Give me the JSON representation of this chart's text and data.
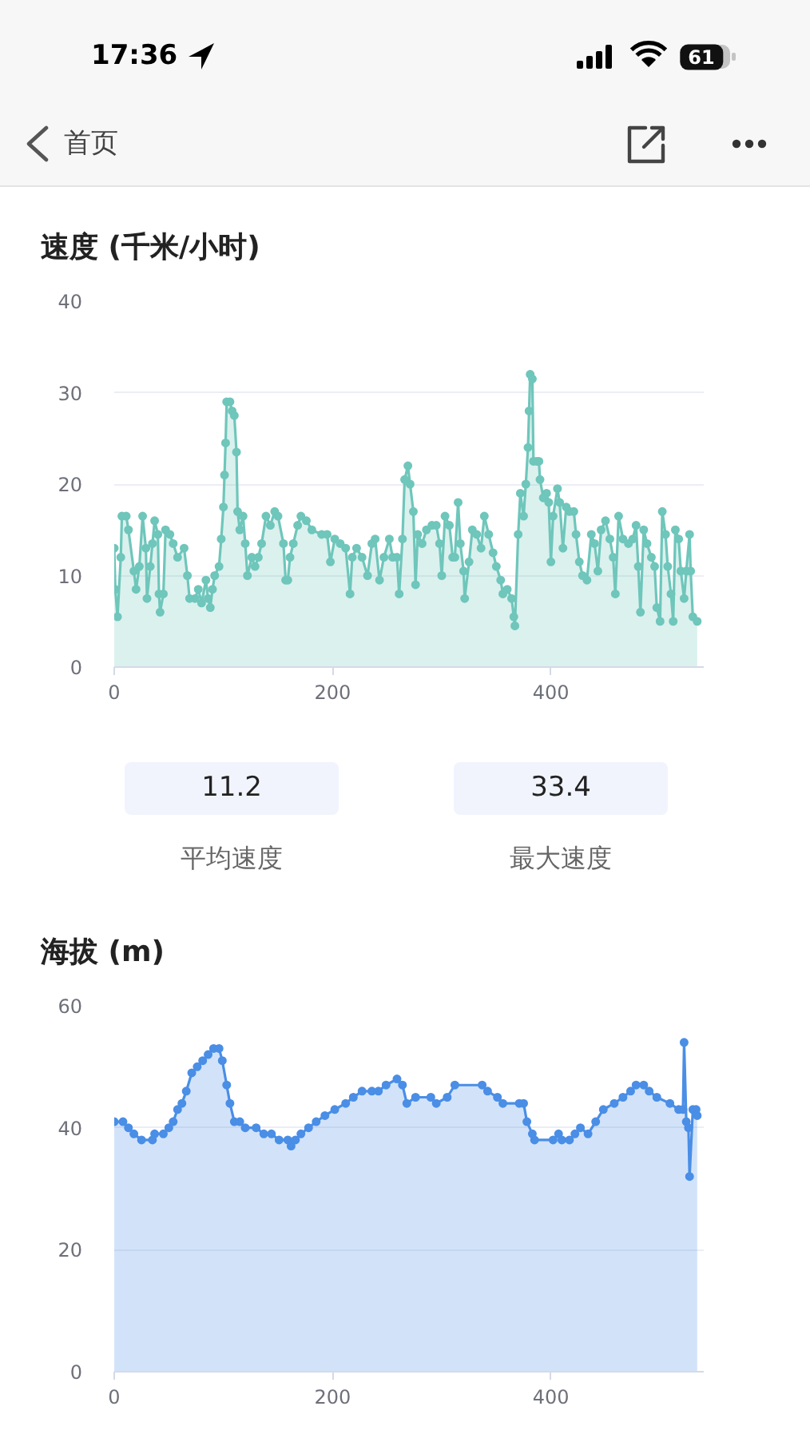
{
  "chart_data": [
    {
      "type": "other",
      "annotations": [
        "17:36",
        "61",
        "首页"
      ]
    },
    {
      "type": "area",
      "title": "速度 (千米/小时)",
      "color": "#6fc6bb",
      "marker": "circle",
      "grid": "y",
      "xlim": [
        0,
        540
      ],
      "xticks": [
        0,
        200,
        400
      ],
      "ylim": [
        0,
        40
      ],
      "yticks": [
        0,
        10,
        20,
        30,
        40
      ],
      "x": [
        0,
        1,
        3,
        6,
        7,
        11,
        13,
        18,
        20,
        23,
        26,
        29,
        30,
        33,
        35,
        37,
        40,
        41,
        42,
        45,
        47,
        51,
        54,
        58,
        64,
        67,
        69,
        74,
        77,
        80,
        84,
        86,
        88,
        90,
        92,
        96,
        98,
        100,
        101,
        102,
        103,
        106,
        108,
        110,
        112,
        113,
        115,
        118,
        120,
        122,
        126,
        129,
        132,
        135,
        139,
        143,
        147,
        150,
        155,
        157,
        159,
        161,
        164,
        168,
        171,
        176,
        181,
        190,
        195,
        198,
        202,
        207,
        212,
        216,
        218,
        222,
        227,
        232,
        236,
        239,
        243,
        247,
        252,
        255,
        259,
        261,
        264,
        266,
        269,
        271,
        274,
        276,
        278,
        282,
        286,
        291,
        295,
        298,
        300,
        303,
        307,
        310,
        312,
        315,
        317,
        320,
        321,
        325,
        328,
        332,
        336,
        339,
        343,
        347,
        350,
        354,
        356,
        360,
        364,
        366,
        367,
        370,
        372,
        375,
        377,
        379,
        380,
        381,
        383,
        384,
        387,
        389,
        390,
        393,
        396,
        398,
        400,
        402,
        406,
        408,
        411,
        414,
        417,
        421,
        423,
        426,
        429,
        433,
        437,
        440,
        443,
        446,
        450,
        454,
        457,
        459,
        462,
        466,
        471,
        475,
        478,
        480,
        482,
        485,
        488,
        492,
        495,
        497,
        500,
        502,
        505,
        507,
        510,
        512,
        514,
        517,
        519,
        522,
        524,
        527,
        528,
        530,
        534
      ],
      "values": [
        13,
        8.5,
        5.5,
        12,
        16.5,
        16.5,
        15,
        10.5,
        8.5,
        11,
        16.5,
        13,
        7.5,
        11,
        13.5,
        16,
        14.5,
        8,
        6,
        8,
        15,
        14.5,
        13.5,
        12,
        13,
        10,
        7.5,
        7.5,
        8.5,
        7,
        9.5,
        7.5,
        6.5,
        8.5,
        10,
        11,
        14,
        17.5,
        21,
        24.5,
        29,
        29,
        28,
        27.5,
        23.5,
        17,
        15,
        16.5,
        13.5,
        10,
        12,
        11,
        12,
        13.5,
        16.5,
        15.5,
        17,
        16.5,
        13.5,
        9.5,
        9.5,
        12,
        13.5,
        15.5,
        16.5,
        16,
        15,
        14.5,
        14.5,
        11.5,
        14,
        13.5,
        13,
        8,
        12,
        13,
        12,
        10,
        13.5,
        14,
        9.5,
        12,
        14,
        12,
        12,
        8,
        14,
        20.5,
        22,
        20,
        17,
        9,
        14.5,
        13.5,
        15,
        15.5,
        15.5,
        13.5,
        10,
        16.5,
        15.5,
        12,
        12,
        18,
        13.5,
        10.5,
        7.5,
        11.5,
        15,
        14.5,
        13,
        16.5,
        14.5,
        12.5,
        11,
        9.5,
        8,
        8.5,
        7.5,
        5.5,
        4.5,
        14.5,
        19,
        16.5,
        20,
        24,
        28,
        32,
        31.5,
        22.5,
        22.5,
        22.5,
        20.5,
        18.5,
        19,
        18,
        11.5,
        16.5,
        19.5,
        18,
        13,
        17.5,
        17,
        17,
        14.5,
        11.5,
        10,
        9.5,
        14.5,
        13.5,
        10.5,
        15,
        16,
        14,
        12,
        8,
        16.5,
        14,
        13.5,
        14,
        15.5,
        11,
        6,
        15,
        13.5,
        12,
        11,
        6.5,
        5,
        17,
        14.5,
        11,
        8,
        5,
        15,
        14,
        10.5,
        7.5,
        10.5,
        14.5,
        10.5,
        5.5,
        5
      ]
    },
    {
      "type": "other",
      "annotations": [
        "11.2",
        "平均速度",
        "33.4",
        "最大速度"
      ]
    },
    {
      "type": "area",
      "title": "海拔 (m)",
      "color": "#4a8ee6",
      "marker": "circle",
      "grid": "y",
      "xlim": [
        0,
        540
      ],
      "xticks": [
        0,
        200,
        400
      ],
      "ylim": [
        0,
        60
      ],
      "yticks": [
        0,
        20,
        40,
        60
      ],
      "x": [
        0,
        8,
        13,
        18,
        25,
        35,
        37,
        45,
        50,
        54,
        58,
        62,
        66,
        71,
        76,
        81,
        86,
        91,
        96,
        99,
        103,
        106,
        110,
        115,
        120,
        130,
        137,
        144,
        151,
        159,
        162,
        166,
        171,
        178,
        185,
        193,
        202,
        212,
        219,
        227,
        236,
        242,
        249,
        259,
        264,
        268,
        276,
        290,
        295,
        305,
        312,
        337,
        342,
        351,
        356,
        371,
        375,
        378,
        383,
        385,
        402,
        407,
        410,
        417,
        422,
        427,
        434,
        441,
        448,
        458,
        466,
        473,
        478,
        485,
        490,
        497,
        509,
        517,
        521,
        522,
        524,
        526,
        527,
        530,
        533,
        534
      ],
      "values": [
        41,
        41,
        40,
        39,
        38,
        38,
        39,
        39,
        40,
        41,
        43,
        44,
        46,
        49,
        50,
        51,
        52,
        53,
        53,
        51,
        47,
        44,
        41,
        41,
        40,
        40,
        39,
        39,
        38,
        38,
        37,
        38,
        39,
        40,
        41,
        42,
        43,
        44,
        45,
        46,
        46,
        46,
        47,
        48,
        47,
        44,
        45,
        45,
        44,
        45,
        47,
        47,
        46,
        45,
        44,
        44,
        44,
        41,
        39,
        38,
        38,
        39,
        38,
        38,
        39,
        40,
        39,
        41,
        43,
        44,
        45,
        46,
        47,
        47,
        46,
        45,
        44,
        43,
        43,
        54,
        41,
        40,
        32,
        43,
        43,
        42
      ]
    }
  ]
}
